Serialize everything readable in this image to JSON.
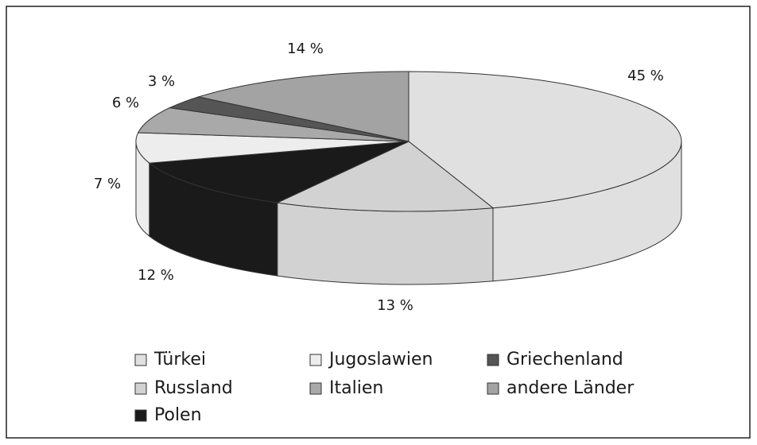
{
  "chart_data": {
    "type": "pie",
    "categories": [
      "Türkei",
      "Russland",
      "Polen",
      "Jugoslawien",
      "Italien",
      "Griechenland",
      "andere Länder"
    ],
    "values": [
      45,
      13,
      12,
      7,
      6,
      3,
      14
    ],
    "value_labels": [
      "45 %",
      "13 %",
      "12 %",
      "7 %",
      "6 %",
      "3 %",
      "14 %"
    ],
    "colors": [
      "#e0e0e0",
      "#d2d2d2",
      "#1a1a1a",
      "#ededed",
      "#a9a9a9",
      "#555555",
      "#a3a3a3"
    ],
    "legend": "bottom"
  }
}
